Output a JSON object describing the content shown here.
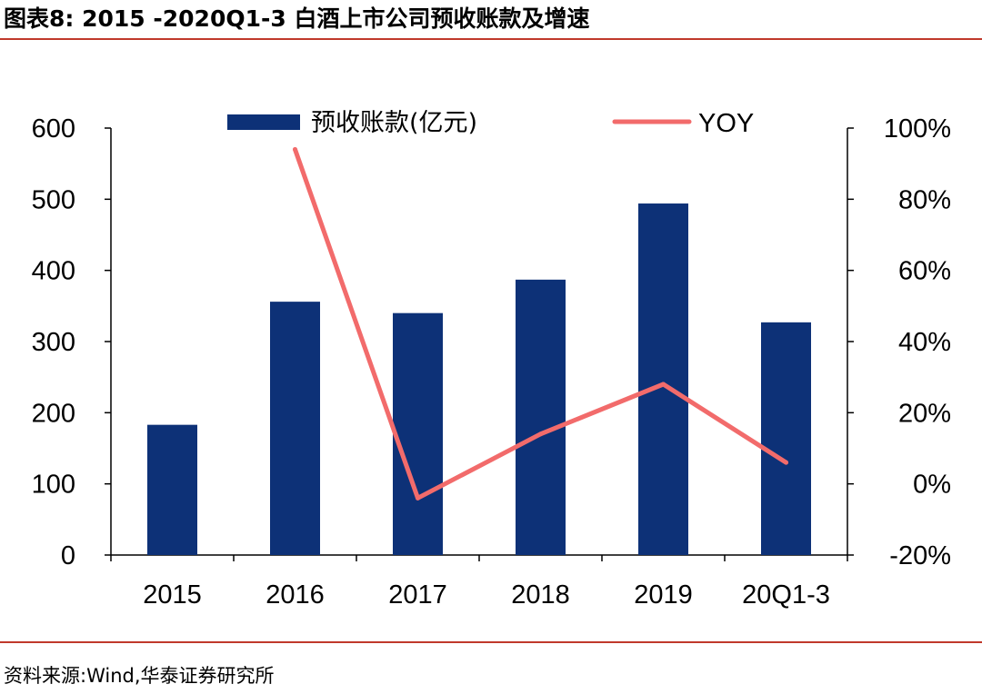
{
  "title": "图表8:   2015 -2020Q1-3 白酒上市公司预收账款及增速",
  "source": "资料来源:Wind,华泰证券研究所",
  "colors": {
    "bar": "#0d3177",
    "line": "#f26b6b",
    "rule": "#c0392b",
    "axis": "#000000"
  },
  "chart_data": {
    "type": "bar",
    "categories": [
      "2015",
      "2016",
      "2017",
      "2018",
      "2019",
      "20Q1-3"
    ],
    "series": [
      {
        "name": "预收账款(亿元)",
        "type": "bar",
        "axis": "left",
        "values": [
          183,
          356,
          340,
          387,
          494,
          327
        ]
      },
      {
        "name": "YOY",
        "type": "line",
        "axis": "right",
        "values": [
          null,
          94,
          -4,
          14,
          28,
          6
        ]
      }
    ],
    "left_axis": {
      "ylim": [
        0,
        600
      ],
      "ticks": [
        "0",
        "100",
        "200",
        "300",
        "400",
        "500",
        "600"
      ]
    },
    "right_axis": {
      "ylim": [
        -20,
        100
      ],
      "unit": "%",
      "ticks": [
        "-20%",
        "0%",
        "20%",
        "40%",
        "60%",
        "80%",
        "100%"
      ]
    },
    "legend_position": "top",
    "grid": false
  }
}
